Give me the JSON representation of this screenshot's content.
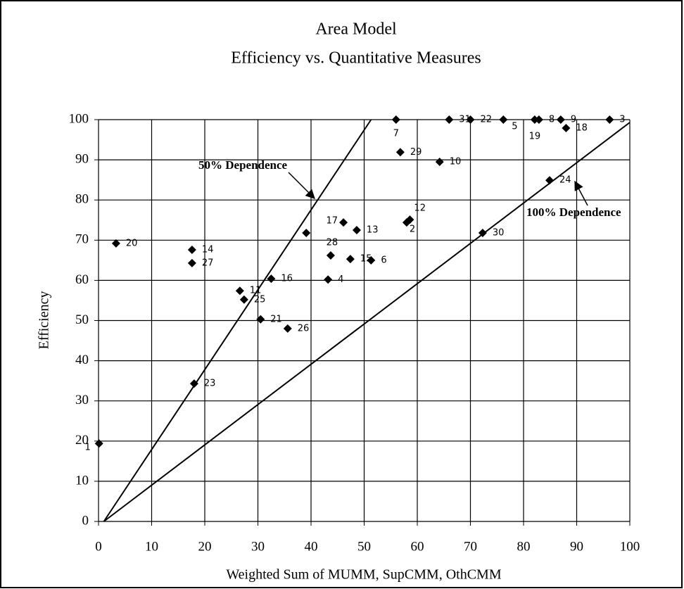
{
  "chart_data": {
    "type": "scatter",
    "title": "Area Model",
    "subtitle": "Efficiency vs. Quantitative Measures",
    "x_label": "Weighted Sum of MUMM, SupCMM, OthCMM",
    "y_label": "Efficiency",
    "xlim": [
      0,
      100
    ],
    "ylim": [
      0,
      100
    ],
    "xticks": [
      0,
      10,
      20,
      30,
      40,
      50,
      60,
      70,
      80,
      90,
      100
    ],
    "yticks": [
      0,
      10,
      20,
      30,
      40,
      50,
      60,
      70,
      80,
      90,
      100
    ],
    "grid": true,
    "color": "#000000",
    "x": [
      0.1,
      3.3,
      17.6,
      17.6,
      18.0,
      26.6,
      27.4,
      30.5,
      32.5,
      35.6,
      39.1,
      43.2,
      43.7,
      46.1,
      47.4,
      48.6,
      51.3,
      56,
      56.8,
      58,
      58.6,
      64.2,
      66,
      70,
      72.3,
      76.2,
      82.1,
      82.9,
      84.9,
      87,
      88,
      96.2
    ],
    "values": [
      19.4,
      69.2,
      67.6,
      64.3,
      34.3,
      57.4,
      55.2,
      50.3,
      60.4,
      48.0,
      71.8,
      60.2,
      66.2,
      74.4,
      65.3,
      72.5,
      65.0,
      100,
      91.9,
      74.4,
      75.1,
      89.5,
      100,
      100,
      71.8,
      100,
      100,
      100,
      84.9,
      100,
      97.9,
      100
    ],
    "point_labels": [
      "1",
      "20",
      "14",
      "27",
      "23",
      "11",
      "25",
      "21",
      "16",
      "26",
      null,
      "4",
      "28",
      "17",
      "15",
      "13",
      "6",
      "7",
      "29",
      "2",
      "12",
      "10",
      "31",
      "22",
      "30",
      "5",
      "19",
      "8",
      "24",
      "9",
      "18",
      "3"
    ],
    "reference_lines": [
      {
        "x": [
          1,
          51.3
        ],
        "values": [
          0,
          100
        ]
      },
      {
        "x": [
          1,
          100
        ],
        "values": [
          0,
          99.3
        ]
      }
    ],
    "annotations": [
      "50% Dependence",
      "100% Dependence"
    ]
  }
}
